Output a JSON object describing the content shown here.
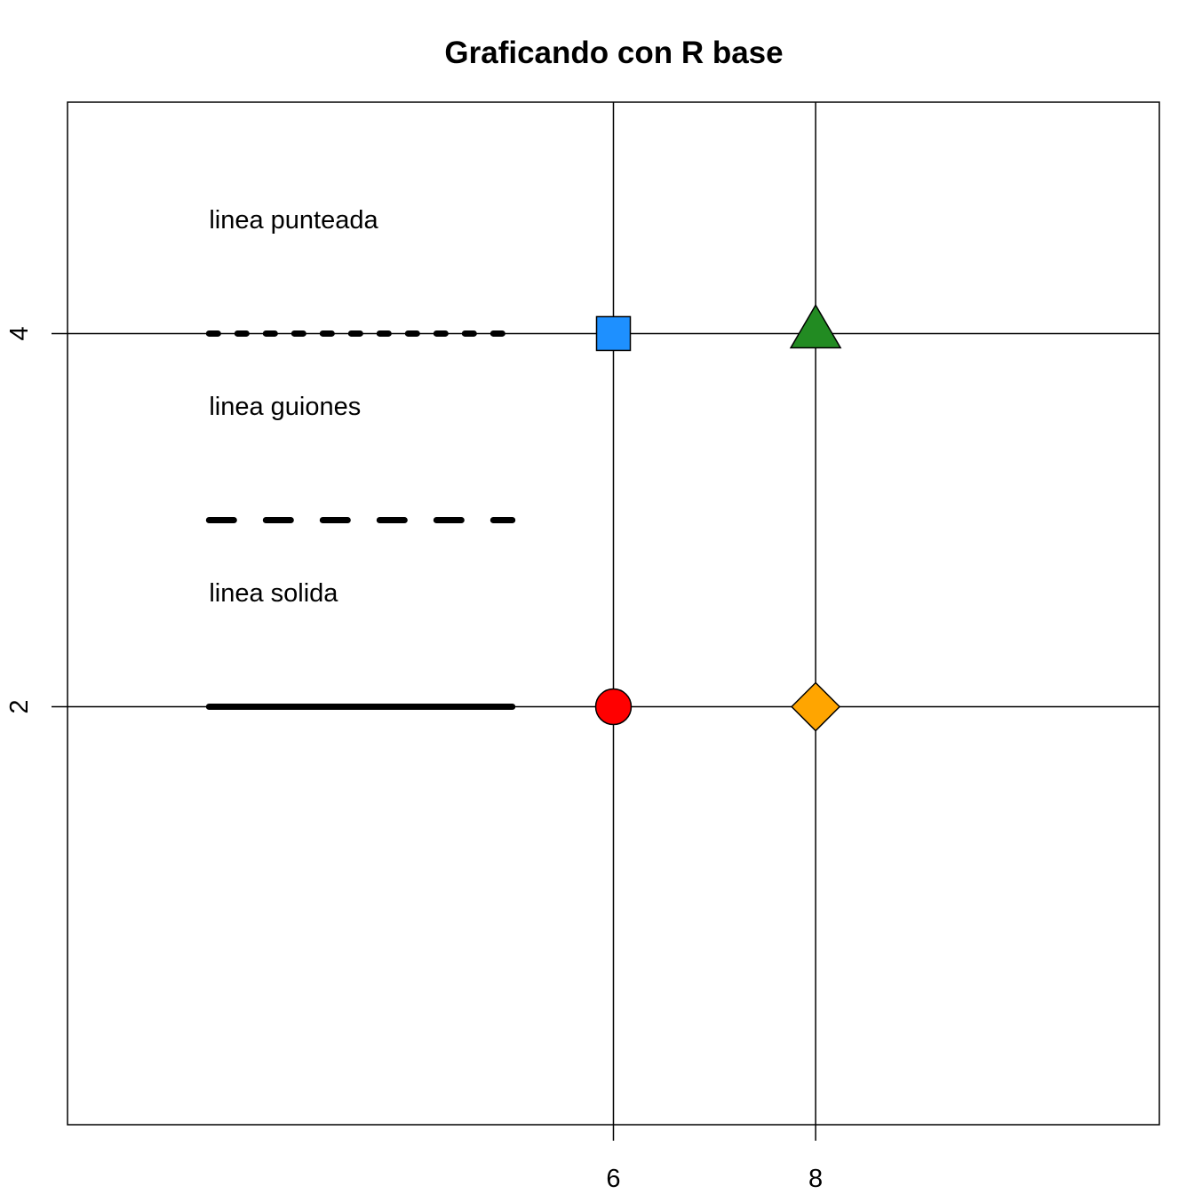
{
  "chart_data": {
    "type": "scatter",
    "title": "Graficando con R base",
    "xlabel": "",
    "ylabel": "",
    "xlim": [
      0.6,
      11.4
    ],
    "ylim": [
      -0.24,
      5.24
    ],
    "x_ticks": [
      6,
      8
    ],
    "y_ticks": [
      2,
      4
    ],
    "reference_lines": {
      "vertical": [
        6,
        8
      ],
      "horizontal": [
        2,
        4
      ]
    },
    "points": [
      {
        "name": "circle",
        "shape": "circle",
        "x": 6,
        "y": 2,
        "color": "#FF0000"
      },
      {
        "name": "square",
        "shape": "square",
        "x": 6,
        "y": 4,
        "color": "#1E90FF"
      },
      {
        "name": "triangle",
        "shape": "triangle",
        "x": 8,
        "y": 4,
        "color": "#228B22"
      },
      {
        "name": "diamond",
        "shape": "diamond",
        "x": 8,
        "y": 2,
        "color": "#FFA500"
      }
    ],
    "annotations": [
      {
        "text": "linea punteada",
        "x": 2.0,
        "y": 4.6
      },
      {
        "text": "linea guiones",
        "x": 2.0,
        "y": 3.6
      },
      {
        "text": "linea solida",
        "x": 2.0,
        "y": 2.6
      }
    ],
    "line_samples": [
      {
        "name": "dotted-line",
        "style": "dotted",
        "x": [
          2.0,
          5.0
        ],
        "y": 4.0
      },
      {
        "name": "dashed-line",
        "style": "dashed",
        "x": [
          2.0,
          5.0
        ],
        "y": 3.0
      },
      {
        "name": "solid-line",
        "style": "solid",
        "x": [
          2.0,
          5.0
        ],
        "y": 2.0
      }
    ],
    "grid": false,
    "colors": {
      "axis": "#000000",
      "text": "#000000",
      "background": "#FFFFFF"
    }
  }
}
